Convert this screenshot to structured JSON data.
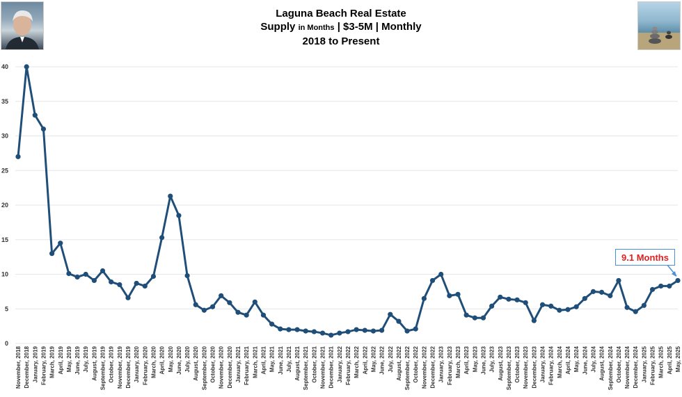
{
  "title": {
    "line1": "Laguna Beach Real Estate",
    "line2_a": "Supply",
    "line2_b": "in Months",
    "line2_c": "| $3-5M | Monthly",
    "line3": "2018 to Present"
  },
  "annotation": {
    "text": "9.1 Months"
  },
  "colors": {
    "series": "#1f4e79",
    "annotation_text": "#e02020",
    "annotation_border": "#4a90d9"
  },
  "chart_data": {
    "type": "line",
    "title": "Laguna Beach Real Estate Supply in Months | $3-5M | Monthly 2018 to Present",
    "xlabel": "",
    "ylabel": "",
    "ylim": [
      0,
      40
    ],
    "yticks": [
      0,
      5,
      10,
      15,
      20,
      25,
      30,
      35,
      40
    ],
    "grid": true,
    "categories": [
      "November, 2018",
      "December, 2018",
      "January, 2019",
      "February, 2019",
      "March, 2019",
      "April, 2019",
      "May, 2019",
      "June, 2019",
      "July, 2019",
      "August, 2019",
      "September, 2019",
      "October, 2019",
      "November, 2019",
      "December, 2019",
      "January, 2020",
      "February, 2020",
      "March, 2020",
      "April, 2020",
      "May, 2020",
      "June, 2020",
      "July, 2020",
      "August, 2020",
      "September, 2020",
      "October, 2020",
      "November, 2020",
      "December, 2020",
      "January, 2021",
      "February, 2021",
      "March, 2021",
      "April, 2021",
      "May, 2021",
      "June, 2021",
      "July, 2021",
      "August, 2021",
      "September, 2021",
      "October, 2021",
      "November, 2021",
      "December, 2021",
      "January, 2022",
      "February, 2022",
      "March, 2022",
      "April, 2022",
      "May, 2022",
      "June, 2022",
      "July, 2022",
      "August, 2022",
      "September, 2022",
      "October, 2022",
      "November, 2022",
      "December, 2022",
      "January, 2023",
      "February, 2023",
      "March, 2023",
      "April, 2023",
      "May, 2023",
      "June, 2023",
      "July, 2023",
      "August, 2023",
      "September, 2023",
      "October, 2023",
      "November, 2023",
      "December, 2023",
      "January, 2024",
      "February, 2024",
      "March, 2024",
      "April, 2024",
      "May, 2024",
      "June, 2024",
      "July, 2024",
      "August, 2024",
      "September, 2024",
      "October, 2024",
      "November, 2024",
      "December, 2024",
      "January, 2025",
      "February, 2025",
      "March, 2025",
      "April, 2025",
      "May, 2025"
    ],
    "series": [
      {
        "name": "Supply in Months",
        "values": [
          27.0,
          40.0,
          33.0,
          31.0,
          13.0,
          14.5,
          10.1,
          9.6,
          10.0,
          9.1,
          10.5,
          8.9,
          8.5,
          6.6,
          8.7,
          8.3,
          9.7,
          15.3,
          21.3,
          18.5,
          9.8,
          5.6,
          4.8,
          5.3,
          6.9,
          5.9,
          4.5,
          4.1,
          6.0,
          4.1,
          2.8,
          2.1,
          2.0,
          2.0,
          1.8,
          1.7,
          1.5,
          1.2,
          1.5,
          1.7,
          2.0,
          1.9,
          1.8,
          1.9,
          4.2,
          3.2,
          1.8,
          2.1,
          6.5,
          9.1,
          10.0,
          6.9,
          7.1,
          4.1,
          3.7,
          3.7,
          5.4,
          6.7,
          6.4,
          6.3,
          5.9,
          3.3,
          5.6,
          5.4,
          4.8,
          4.9,
          5.3,
          6.5,
          7.5,
          7.4,
          6.9,
          9.1,
          5.2,
          4.6,
          5.5,
          7.8,
          8.3,
          8.3,
          9.1
        ]
      }
    ],
    "annotations": [
      "9.1 Months"
    ]
  }
}
